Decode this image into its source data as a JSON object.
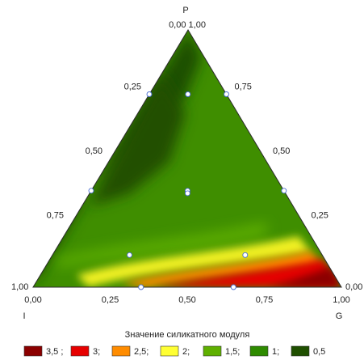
{
  "chart_data": {
    "type": "heatmap",
    "subtype": "ternary",
    "vertices": {
      "top": "P",
      "left": "I",
      "right": "G"
    },
    "vertex_values": {
      "top": "0,00 1,00",
      "left": "1,00",
      "right": "0,00"
    },
    "axis_ticks": {
      "bottom": [
        "0,00",
        "0,25",
        "0,50",
        "0,75",
        "1,00"
      ],
      "left_edge": [
        "0,25",
        "0,50",
        "0,75"
      ],
      "right_edge": [
        "0,75",
        "0,50",
        "0,25"
      ]
    },
    "design_points": [
      {
        "P": 0.75,
        "I": 0.25,
        "G": 0.0
      },
      {
        "P": 0.75,
        "I": 0.0,
        "G": 0.25
      },
      {
        "P": 0.75,
        "I": 0.125,
        "G": 0.125
      },
      {
        "P": 0.375,
        "I": 0.625,
        "G": 0.0
      },
      {
        "P": 0.375,
        "I": 0.0,
        "G": 0.625
      },
      {
        "P": 0.375,
        "I": 0.3125,
        "G": 0.3125
      },
      {
        "P": 0.365,
        "I": 0.3175,
        "G": 0.3175
      },
      {
        "P": 0.125,
        "I": 0.625,
        "G": 0.25
      },
      {
        "P": 0.125,
        "I": 0.25,
        "G": 0.625
      },
      {
        "P": 0.0,
        "I": 0.65,
        "G": 0.35
      },
      {
        "P": 0.0,
        "I": 0.35,
        "G": 0.65
      }
    ],
    "legend": {
      "title": "Значение силикатного модуля",
      "position": "bottom",
      "entries": [
        {
          "label": "3,5 ;",
          "color": "#8b0000"
        },
        {
          "label": "3;",
          "color": "#e60000"
        },
        {
          "label": "2,5;",
          "color": "#ff8c00"
        },
        {
          "label": "2;",
          "color": "#ffff33"
        },
        {
          "label": "1,5;",
          "color": "#5fb000"
        },
        {
          "label": "1;",
          "color": "#2e8b00"
        },
        {
          "label": "0,5",
          "color": "#1f4f00"
        }
      ]
    }
  }
}
